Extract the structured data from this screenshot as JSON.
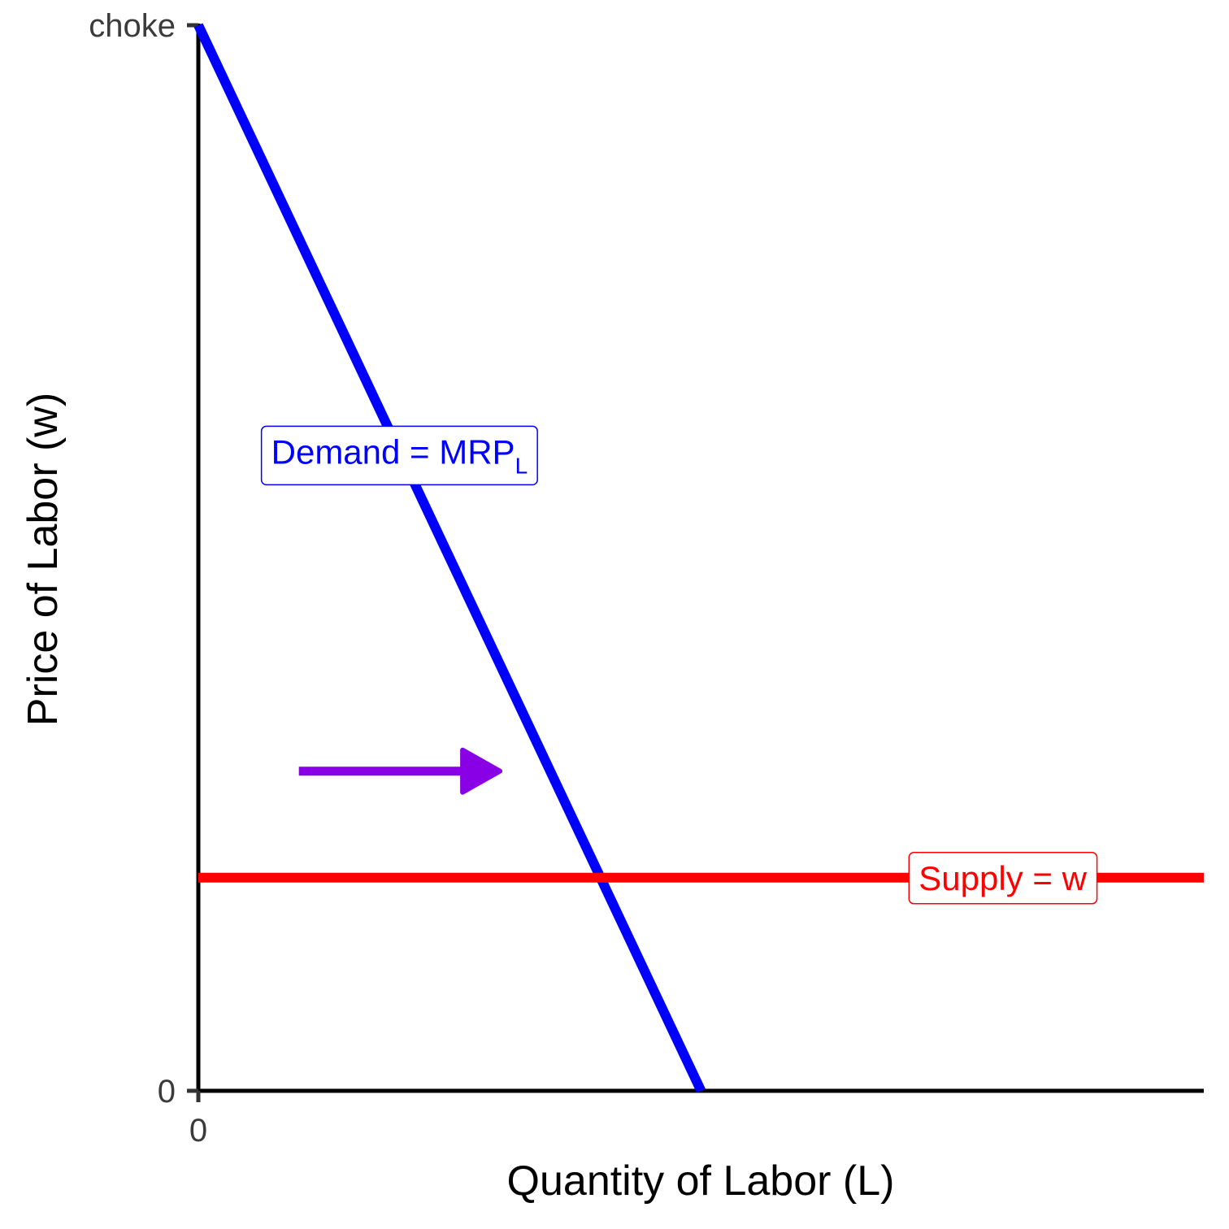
{
  "chart_data": {
    "type": "line",
    "xlabel": "Quantity of Labor (L)",
    "ylabel": "Price of Labor (w)",
    "xlim": [
      0,
      10
    ],
    "ylim": [
      0,
      10
    ],
    "x_ticks": [
      {
        "value": 0,
        "label": "0"
      }
    ],
    "y_ticks": [
      {
        "value": 0,
        "label": "0"
      },
      {
        "value": 10,
        "label": "choke"
      }
    ],
    "grid": false,
    "series": [
      {
        "name": "Demand = MRPL",
        "label_main": "Demand = MRP",
        "label_sub": "L",
        "color": "#0000ff",
        "x": [
          0,
          5
        ],
        "y": [
          10,
          0
        ],
        "label_at": {
          "x": 2,
          "y": 6
        }
      },
      {
        "name": "Supply = w",
        "label_main": "Supply = w",
        "label_sub": "",
        "color": "#ff0000",
        "x": [
          0,
          10
        ],
        "y": [
          2,
          2
        ],
        "label_at": {
          "x": 8,
          "y": 2
        }
      }
    ],
    "annotations": [
      {
        "type": "arrow",
        "meaning": "rightward shift",
        "color": "#8a00e6",
        "from": {
          "x": 1,
          "y": 3
        },
        "to": {
          "x": 3,
          "y": 3
        }
      }
    ]
  }
}
